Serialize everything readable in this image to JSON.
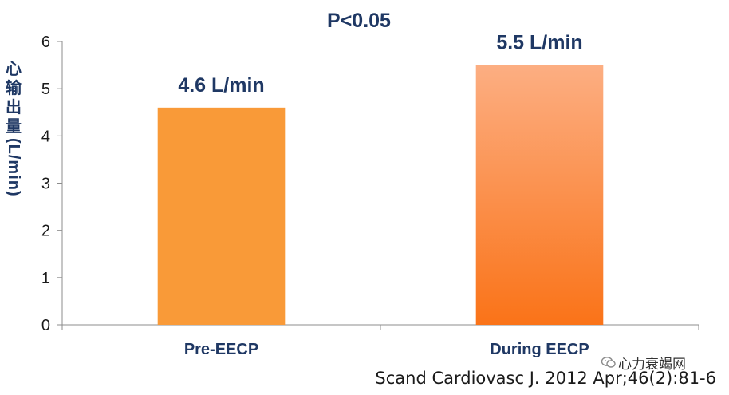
{
  "chart_data": {
    "type": "bar",
    "title": "P<0.05",
    "categories": [
      "Pre-EECP",
      "During EECP"
    ],
    "values": [
      4.6,
      5.5
    ],
    "data_labels": [
      "4.6 L/min",
      "5.5 L/min"
    ],
    "ylabel_zh": [
      "心",
      "输",
      "出",
      "量"
    ],
    "ylabel_en": "(L/min)",
    "ylim": [
      0,
      6
    ],
    "yticks": [
      "0",
      "1",
      "2",
      "3",
      "4",
      "5",
      "6"
    ],
    "grid": false,
    "colors": {
      "bar1": "#f99a38",
      "bar2_top": "#fcae82",
      "bar2_bottom": "#fa7318",
      "axis": "#8c8c8c",
      "text_dark": "#1f3864"
    }
  },
  "citation": "Scand Cardiovasc J. 2012 Apr;46(2):81-6",
  "watermark": {
    "icon": "wechat-icon",
    "text": "心力衰竭网"
  }
}
